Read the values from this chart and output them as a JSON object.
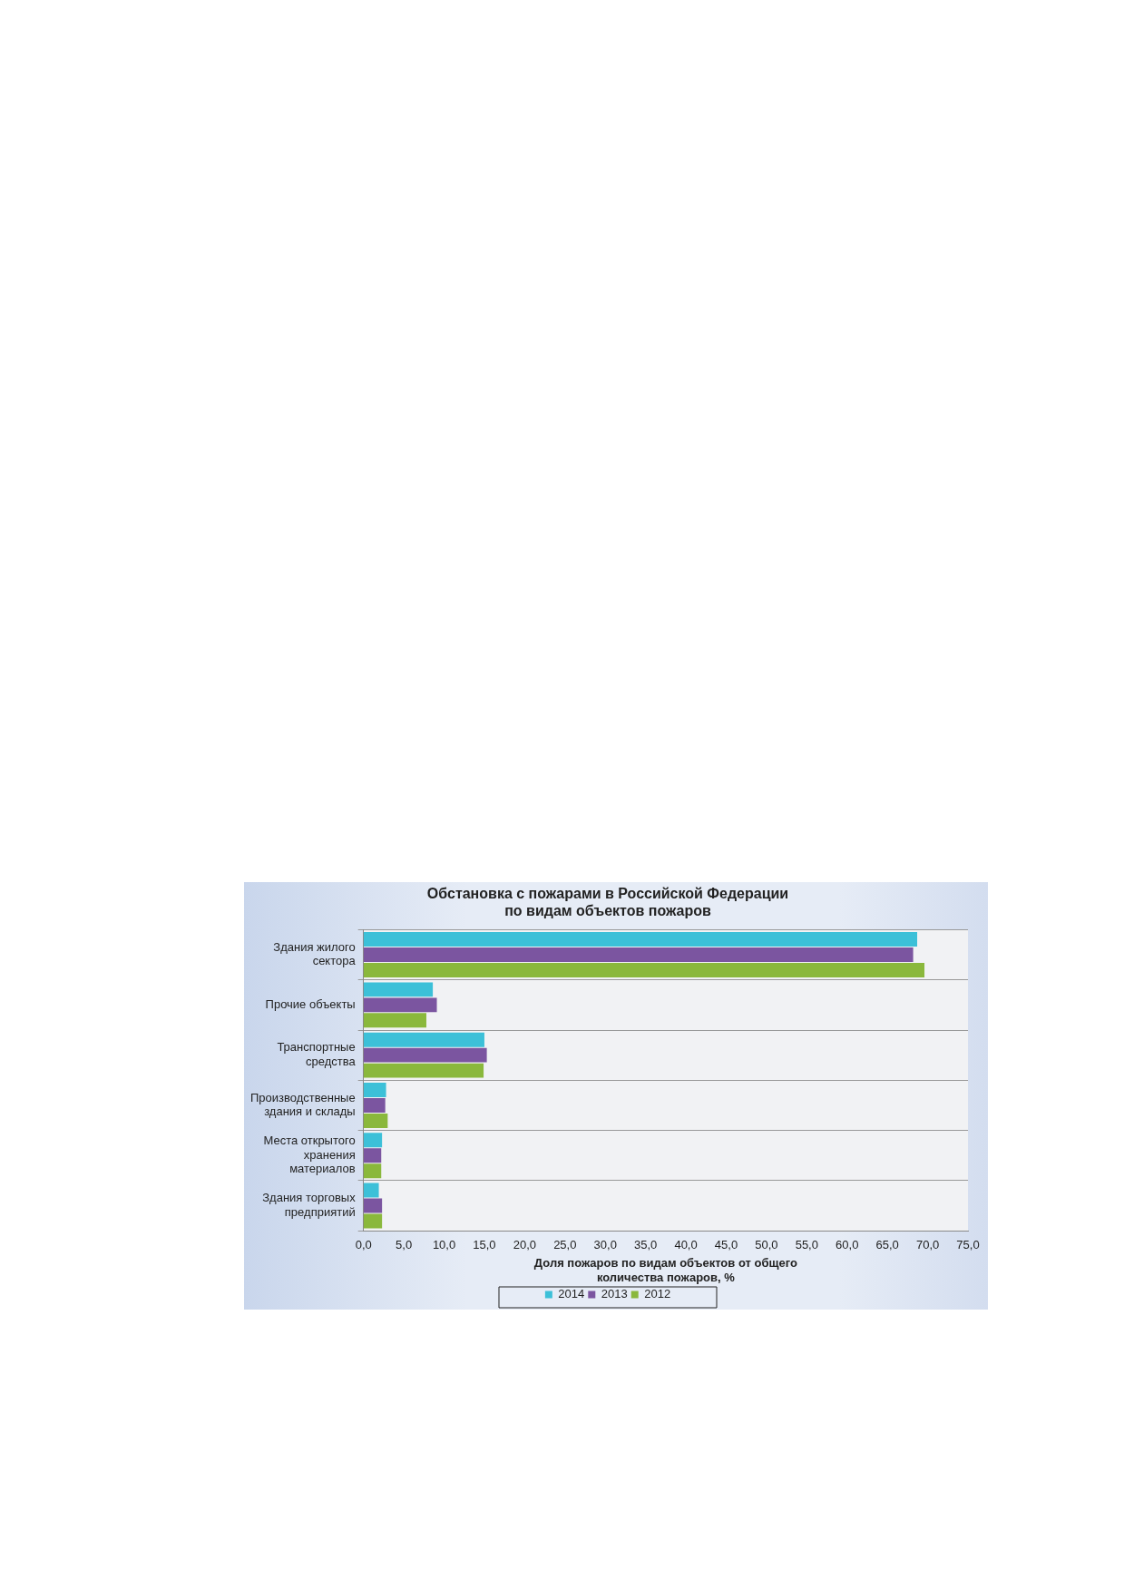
{
  "chart_data": {
    "type": "bar",
    "orientation": "horizontal",
    "title": "Обстановка с пожарами в Российской Федерации\nпо видам объектов пожаров",
    "xlabel": "Доля пожаров по видам объектов от общего количества пожаров, %",
    "categories": [
      "Здания жилого сектора",
      "Прочие объекты",
      "Транспортные средства",
      "Производственные здания и склады",
      "Места открытого хранения материалов",
      "Здания торговых предприятий"
    ],
    "series": [
      {
        "name": "2014",
        "color": "#3cc0d8",
        "values": [
          68.7,
          8.6,
          15.0,
          2.8,
          2.3,
          1.9
        ]
      },
      {
        "name": "2013",
        "color": "#7b55a0",
        "values": [
          68.2,
          9.1,
          15.3,
          2.7,
          2.2,
          2.3
        ]
      },
      {
        "name": "2012",
        "color": "#8ab83c",
        "values": [
          69.6,
          7.8,
          14.9,
          3.0,
          2.2,
          2.3
        ]
      }
    ],
    "xlim": [
      0,
      75
    ],
    "xticks": [
      {
        "value": 0,
        "label": "0,0"
      },
      {
        "value": 5,
        "label": "5,0"
      },
      {
        "value": 10,
        "label": "10,0"
      },
      {
        "value": 15,
        "label": "15,0"
      },
      {
        "value": 20,
        "label": "20,0"
      },
      {
        "value": 25,
        "label": "25,0"
      },
      {
        "value": 30,
        "label": "30,0"
      },
      {
        "value": 35,
        "label": "35,0"
      },
      {
        "value": 40,
        "label": "40,0"
      },
      {
        "value": 45,
        "label": "45,0"
      },
      {
        "value": 50,
        "label": "50,0"
      },
      {
        "value": 55,
        "label": "55,0"
      },
      {
        "value": 60,
        "label": "60,0"
      },
      {
        "value": 65,
        "label": "65,0"
      },
      {
        "value": 70,
        "label": "70,0"
      },
      {
        "value": 75,
        "label": "75,0"
      }
    ],
    "grid": "y",
    "legend": "bottom"
  }
}
